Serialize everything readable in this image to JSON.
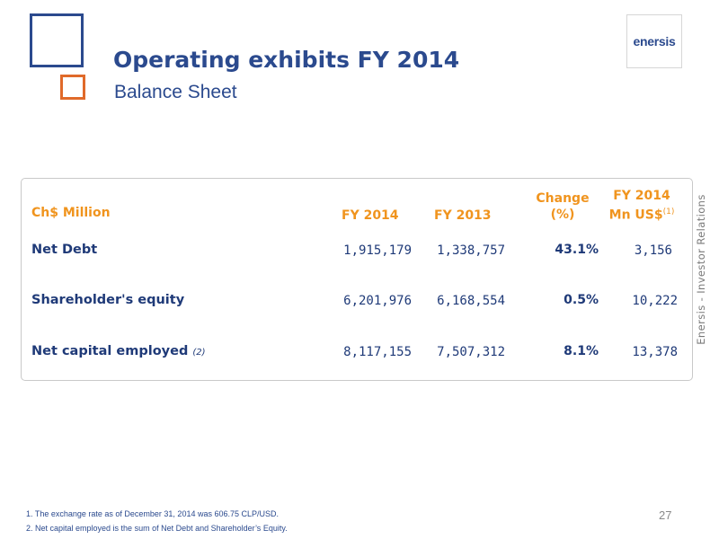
{
  "header": {
    "title": "Operating exhibits FY 2014",
    "subtitle": "Balance Sheet",
    "logo_text": "enersis",
    "side_text": "Enersis - Investor Relations"
  },
  "table": {
    "columns": {
      "label": "Ch$ Million",
      "fy2014": "FY 2014",
      "fy2013": "FY 2013",
      "change_line1": "Change",
      "change_line2": "(%)",
      "usd_line1": "FY 2014",
      "usd_line2": "Mn US$",
      "usd_note": "(1)"
    },
    "rows": [
      {
        "label": "Net Debt",
        "note": "",
        "fy2014": "1,915,179",
        "fy2013": "1,338,757",
        "change": "43.1%",
        "usd": "3,156"
      },
      {
        "label": "Shareholder's equity",
        "note": "",
        "fy2014": "6,201,976",
        "fy2013": "6,168,554",
        "change": "0.5%",
        "usd": "10,222"
      },
      {
        "label": "Net capital employed",
        "note": "(2)",
        "fy2014": "8,117,155",
        "fy2013": "7,507,312",
        "change": "8.1%",
        "usd": "13,378"
      }
    ]
  },
  "footer": {
    "page_number": "27",
    "notes": [
      "1. The exchange rate as of December  31, 2014 was 606.75 CLP/USD.",
      "2. Net capital employed is the sum of Net Debt and Shareholder’s Equity."
    ]
  },
  "colors": {
    "primary_blue": "#2b4a8e",
    "accent_orange": "#f0941e",
    "deco_orange": "#e06a2a"
  }
}
